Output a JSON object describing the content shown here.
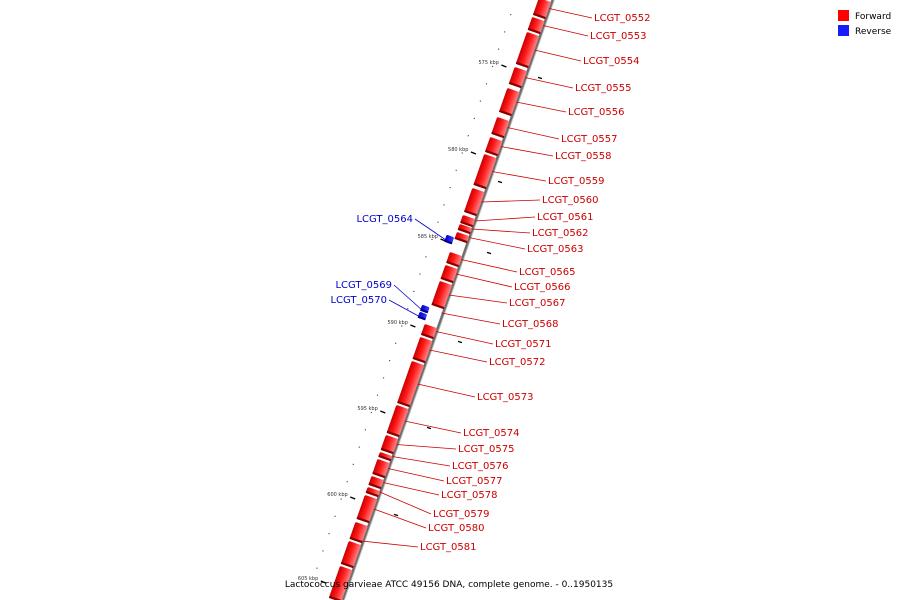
{
  "legend": {
    "forward": {
      "label": "Forward",
      "color": "#ff0000"
    },
    "reverse": {
      "label": "Reverse",
      "color": "#1a1aff"
    }
  },
  "caption": "Lactococcus garvieae ATCC 49156 DNA, complete genome. - 0..1950135",
  "ticks": [
    {
      "label": "575 kbp"
    },
    {
      "label": "580 kbp"
    },
    {
      "label": "585 kbp"
    },
    {
      "label": "590 kbp"
    },
    {
      "label": "595 kbp"
    },
    {
      "label": "600 kbp"
    },
    {
      "label": "605 kbp"
    }
  ],
  "genes": [
    {
      "name": "LCGT_0552",
      "strand": "forward"
    },
    {
      "name": "LCGT_0553",
      "strand": "forward"
    },
    {
      "name": "LCGT_0554",
      "strand": "forward"
    },
    {
      "name": "LCGT_0555",
      "strand": "forward"
    },
    {
      "name": "LCGT_0556",
      "strand": "forward"
    },
    {
      "name": "LCGT_0557",
      "strand": "forward"
    },
    {
      "name": "LCGT_0558",
      "strand": "forward"
    },
    {
      "name": "LCGT_0559",
      "strand": "forward"
    },
    {
      "name": "LCGT_0560",
      "strand": "forward"
    },
    {
      "name": "LCGT_0561",
      "strand": "forward"
    },
    {
      "name": "LCGT_0562",
      "strand": "forward"
    },
    {
      "name": "LCGT_0563",
      "strand": "forward"
    },
    {
      "name": "LCGT_0564",
      "strand": "reverse"
    },
    {
      "name": "LCGT_0565",
      "strand": "forward"
    },
    {
      "name": "LCGT_0566",
      "strand": "forward"
    },
    {
      "name": "LCGT_0567",
      "strand": "forward"
    },
    {
      "name": "LCGT_0568",
      "strand": "forward"
    },
    {
      "name": "LCGT_0569",
      "strand": "reverse"
    },
    {
      "name": "LCGT_0570",
      "strand": "reverse"
    },
    {
      "name": "LCGT_0571",
      "strand": "forward"
    },
    {
      "name": "LCGT_0572",
      "strand": "forward"
    },
    {
      "name": "LCGT_0573",
      "strand": "forward"
    },
    {
      "name": "LCGT_0574",
      "strand": "forward"
    },
    {
      "name": "LCGT_0575",
      "strand": "forward"
    },
    {
      "name": "LCGT_0576",
      "strand": "forward"
    },
    {
      "name": "LCGT_0577",
      "strand": "forward"
    },
    {
      "name": "LCGT_0578",
      "strand": "forward"
    },
    {
      "name": "LCGT_0579",
      "strand": "forward"
    },
    {
      "name": "LCGT_0580",
      "strand": "forward"
    },
    {
      "name": "LCGT_0581",
      "strand": "forward"
    }
  ]
}
